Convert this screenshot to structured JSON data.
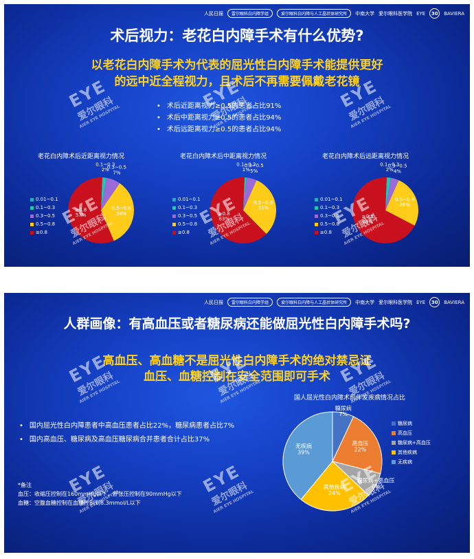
{
  "header": {
    "logo_cn": "人民日报",
    "logo_sub": "健康客户端",
    "pill1": "雷尔眼科白内障学组",
    "pill2": "爱尔眼科白内障与人工晶状体研究所",
    "uni": "中南大学",
    "school": "爱尔眼科医学院",
    "eye": "EYE",
    "eye_sub": "爱尔眼科",
    "anniv": "30",
    "baviera": "BAVIERA"
  },
  "watermark": {
    "logo": "EYE",
    "cn": "爱尔眼科",
    "en": "AIER EYE HOSPITAL"
  },
  "slide1": {
    "title": "术后视力：老花白内障手术有什么优势?",
    "subtitle_line1": "以老花白内障手术为代表的屈光性白内障手术能提供更好",
    "subtitle_line2": "的远中近全程视力，且术后不再需要佩戴老花镜",
    "bullets": [
      "术后近距离视力≥0.5的患者占比91%",
      "术后中距离视力≥0.5的患者占比94%",
      "术后远距离视力≥0.5的患者占比94%"
    ]
  },
  "slide2": {
    "title": "人群画像：有高血压或者糖尿病还能做屈光性白内障手术吗?",
    "subtitle_line1": "高血压、高血糖不是屈光性白内障手术的绝对禁忌证",
    "subtitle_line2": "血压、血糖控制在安全范围即可手术",
    "bullets": [
      "国内屈光性白内障患者中高血压患者占比22%，糖尿病患者占比7%",
      "国内高血压、糖尿病及高血压糖尿病合并患者合计占比37%"
    ],
    "note_title": "*备注",
    "note_line1": "血压：收缩压控制在160mmHg以下，舒张压控制在90mmHg以下",
    "note_line2": "血糖：空腹血糖控制在血糖控制到8.3mmol/L以下"
  },
  "chart_data": [
    {
      "type": "pie",
      "title": "老花白内障术后近距离视力情况",
      "categories": [
        "0.01~0.1",
        "0.1~0.3",
        "0.3~0.5",
        "0.5~0.8",
        "≥0.8"
      ],
      "values": [
        0,
        2,
        7,
        34,
        57
      ],
      "labels": [
        "",
        "0.1~0.3\n2%",
        "0.3~0.5\n7%",
        "0.5~0.8\n34%",
        "≥0.8\n57%"
      ],
      "colors": [
        "#2aa8c8",
        "#20c8b0",
        "#9a6ad8",
        "#ffcc1a",
        "#c8101e"
      ],
      "legend_position": "left"
    },
    {
      "type": "pie",
      "title": "老花白内障术后中距离视力情况",
      "categories": [
        "0.01~0.1",
        "0.1~0.3",
        "0.3~0.5",
        "0.5~0.8",
        "≥0.8"
      ],
      "values": [
        0,
        1,
        5,
        31,
        63
      ],
      "labels": [
        "",
        "0.1~0.3\n1%",
        "0.3~0.5\n5%",
        "0.5~0.8\n31%",
        "≥0.8\n63%"
      ],
      "colors": [
        "#2aa8c8",
        "#20c8b0",
        "#9a6ad8",
        "#ffcc1a",
        "#c8101e"
      ],
      "legend_position": "left"
    },
    {
      "type": "pie",
      "title": "老花白内障术后远距离视力情况",
      "categories": [
        "0.01~0.1",
        "0.1~0.3",
        "0.3~0.5",
        "0.5~0.8",
        "≥0.8"
      ],
      "values": [
        0,
        2,
        4,
        26,
        68
      ],
      "labels": [
        "",
        "0.1~0.3\n2%",
        "0.3~0.5\n4%",
        "0.5~0.8\n26%",
        "≥0.8\n68%"
      ],
      "colors": [
        "#2aa8c8",
        "#20c8b0",
        "#9a6ad8",
        "#ffcc1a",
        "#c8101e"
      ],
      "legend_position": "left"
    },
    {
      "type": "pie",
      "title": "国人屈光性白内障术前伴发疾病情况占比",
      "categories": [
        "糖尿病",
        "高血压",
        "糖尿病+高血压",
        "其他疾病",
        "无疾病"
      ],
      "values": [
        7,
        22,
        8,
        24,
        39
      ],
      "labels": [
        "糖尿病\n7%",
        "高血压\n22%",
        "糖尿病+高血压\n8%",
        "其他疾病\n24%",
        "无疾病\n39%"
      ],
      "colors": [
        "#4472c4",
        "#ed7d31",
        "#a5a5a5",
        "#ffc000",
        "#5b9bd5"
      ],
      "legend_position": "right"
    }
  ]
}
